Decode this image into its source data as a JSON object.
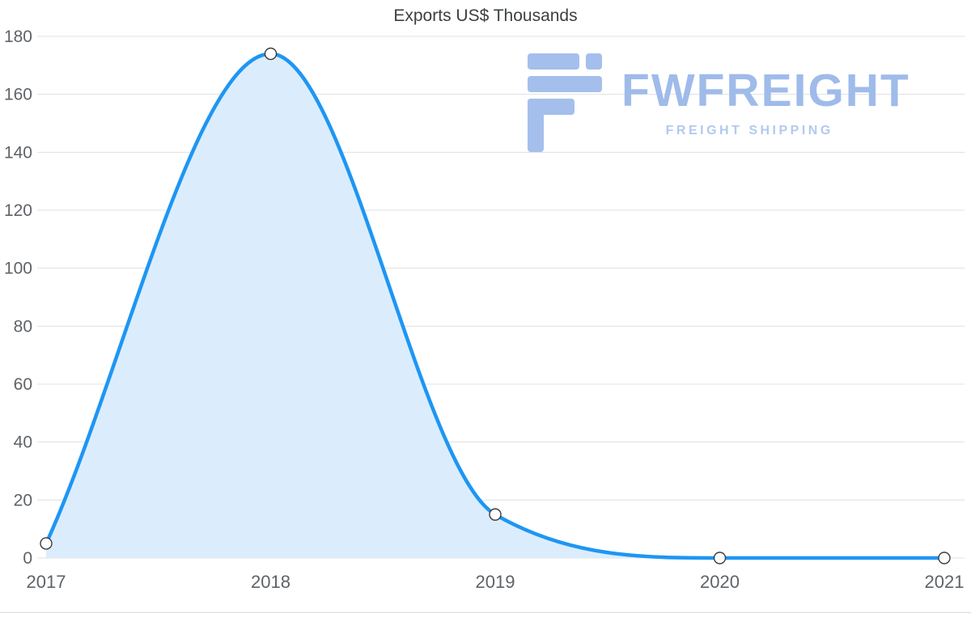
{
  "title": "Exports US$ Thousands",
  "watermark": {
    "brand": "FWFREIGHT",
    "tagline": "FREIGHT SHIPPING",
    "logo_color": "#a4bfec"
  },
  "chart_data": {
    "type": "area",
    "x": [
      2017,
      2018,
      2019,
      2020,
      2021
    ],
    "series": [
      {
        "name": "Exports",
        "values": [
          5,
          174,
          15,
          0,
          0
        ]
      }
    ],
    "title": "Exports US$ Thousands",
    "xlabel": "",
    "ylabel": "",
    "ylim": [
      0,
      180
    ],
    "ytick_step": 20,
    "xtick_labels": [
      "2017",
      "2018",
      "2019",
      "2020",
      "2021"
    ],
    "grid": "horizontal",
    "legend": "none",
    "colors": {
      "line": "#1e96f3",
      "fill": "#dbedfd",
      "point_fill": "#ffffff",
      "point_stroke": "#3b3b3b",
      "grid": "#e0e0e0",
      "tick_text": "#5f6368",
      "title_text": "#3c4043"
    }
  }
}
